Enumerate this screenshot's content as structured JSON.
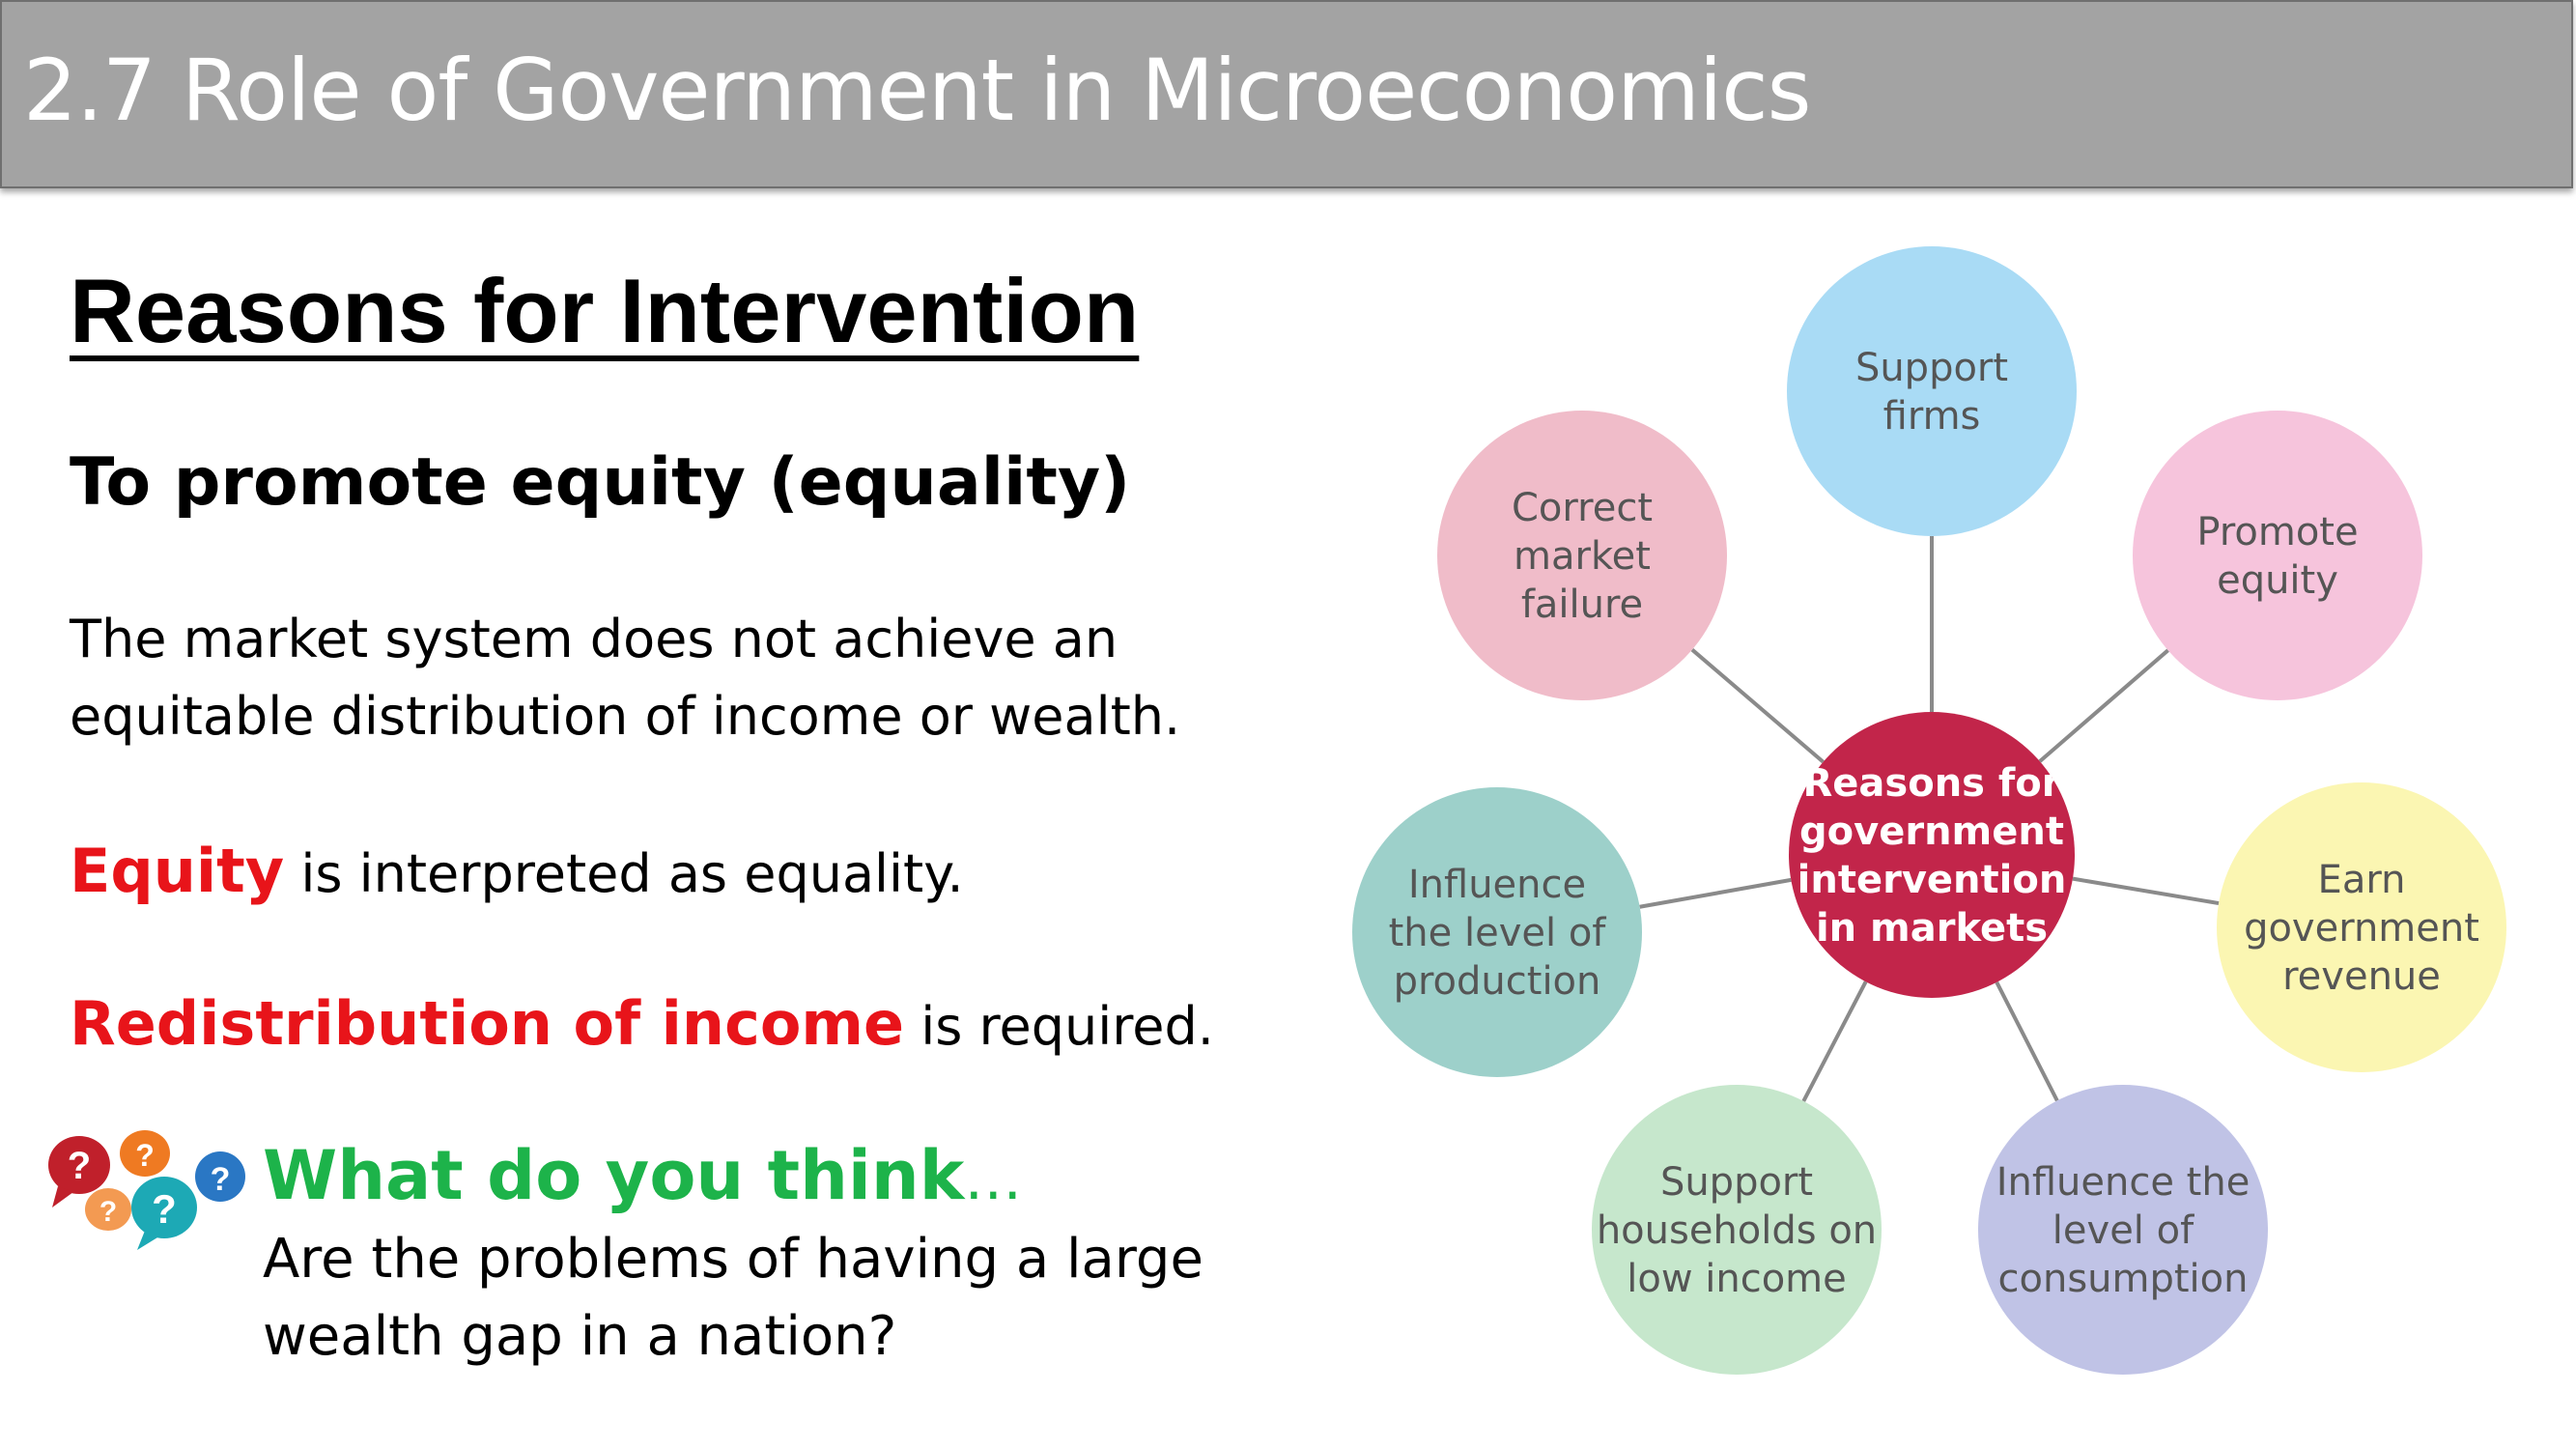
{
  "title": "2.7 Role of Government in Microeconomics",
  "heading": "Reasons for Intervention",
  "subheading": "To promote equity (equality)",
  "paragraph1": [
    "The market system does not achieve an",
    "equitable distribution of income or wealth."
  ],
  "equity": {
    "term": "Equity",
    "rest": " is interpreted as equality."
  },
  "redistribution": {
    "term": "Redistribution of income",
    "rest": " is required."
  },
  "think": {
    "title": "What do you think",
    "dots": "…",
    "question": [
      "Are the problems of having a large",
      "wealth gap in a nation?"
    ],
    "icon": "speech-bubbles-question-icon"
  },
  "diagram": {
    "center": {
      "label": [
        "Reasons for",
        "government",
        "intervention",
        "in markets"
      ],
      "color": "#c2254a"
    },
    "nodes": [
      {
        "label": [
          "Support",
          "firms"
        ],
        "color": "#a9dbf5"
      },
      {
        "label": [
          "Promote",
          "equity"
        ],
        "color": "#f6c4dc"
      },
      {
        "label": [
          "Earn",
          "government",
          "revenue"
        ],
        "color": "#fbf6b2"
      },
      {
        "label": [
          "Influence the",
          "level of",
          "consumption"
        ],
        "color": "#c0c3e6"
      },
      {
        "label": [
          "Support",
          "households on",
          "low income"
        ],
        "color": "#c6e7cc"
      },
      {
        "label": [
          "Influence",
          "the level of",
          "production"
        ],
        "color": "#9dd0ca"
      },
      {
        "label": [
          "Correct",
          "market",
          "failure"
        ],
        "color": "#f0bcc9"
      }
    ]
  }
}
